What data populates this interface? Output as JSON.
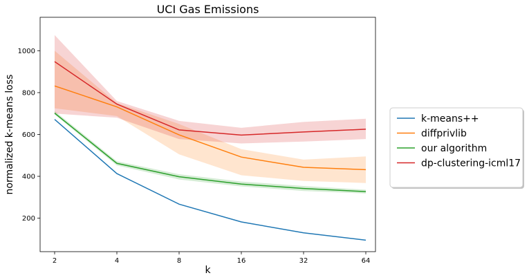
{
  "chart_data": {
    "type": "line",
    "title": "UCI Gas Emissions",
    "xlabel": "k",
    "ylabel": "normalized k-means loss",
    "x": [
      2,
      4,
      8,
      16,
      32,
      64
    ],
    "x_scale": "log2",
    "xticks": [
      "2",
      "4",
      "8",
      "16",
      "32",
      "64"
    ],
    "yticks": [
      200,
      400,
      600,
      800,
      1000
    ],
    "ylim": [
      40,
      1160
    ],
    "grid": false,
    "legend_position": "right, outside plot",
    "series": [
      {
        "name": "k-means++",
        "color": "#1f77b4",
        "values": [
          672,
          413,
          267,
          182,
          130,
          95
        ],
        "lower": [
          672,
          413,
          267,
          182,
          130,
          95
        ],
        "upper": [
          672,
          413,
          267,
          182,
          130,
          95
        ]
      },
      {
        "name": "diffprivlib",
        "color": "#ff7f0e",
        "values": [
          832,
          732,
          598,
          492,
          443,
          432
        ],
        "lower": [
          725,
          688,
          505,
          405,
          378,
          368
        ],
        "upper": [
          1000,
          750,
          650,
          530,
          480,
          495
        ]
      },
      {
        "name": "our algorithm",
        "color": "#2ca02c",
        "values": [
          702,
          462,
          398,
          363,
          342,
          327
        ],
        "lower": [
          695,
          452,
          385,
          352,
          330,
          318
        ],
        "upper": [
          712,
          472,
          410,
          375,
          354,
          336
        ]
      },
      {
        "name": "dp-clustering-icml17",
        "color": "#d62728",
        "values": [
          948,
          745,
          622,
          597,
          612,
          625
        ],
        "lower": [
          700,
          680,
          578,
          557,
          566,
          578
        ],
        "upper": [
          1075,
          760,
          665,
          632,
          660,
          675
        ]
      }
    ]
  }
}
